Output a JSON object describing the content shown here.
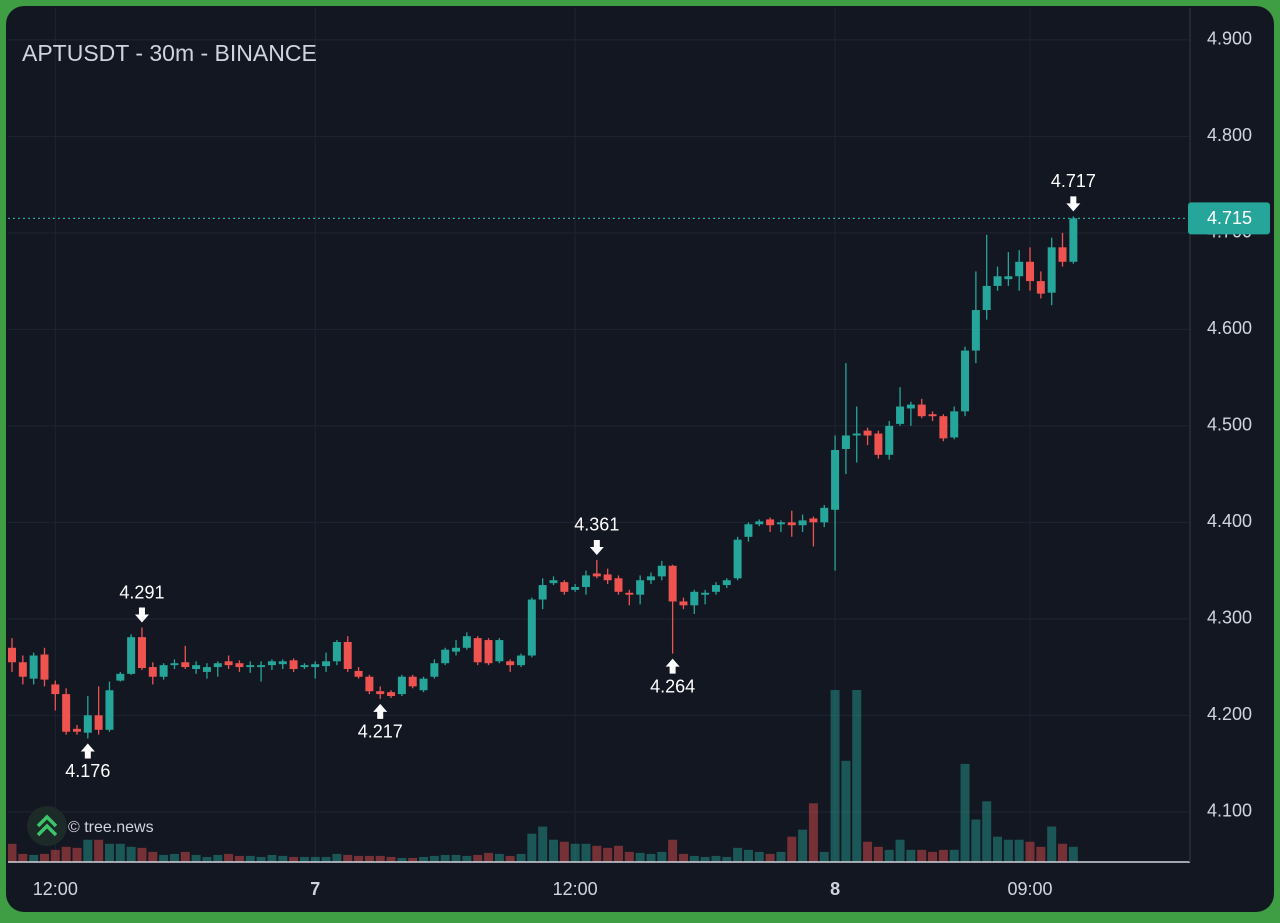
{
  "chart_data": {
    "type": "candlestick",
    "title": "APTUSDT - 30m - BINANCE",
    "watermark": "© tree.news",
    "categories": [
      null,
      null,
      null,
      null,
      "12:00",
      null,
      null,
      null,
      null,
      null,
      null,
      null,
      null,
      null,
      null,
      null,
      null,
      null,
      null,
      null,
      null,
      null,
      null,
      null,
      null,
      null,
      null,
      null,
      "7",
      null,
      null,
      null,
      null,
      null,
      null,
      null,
      null,
      null,
      null,
      null,
      null,
      null,
      null,
      null,
      null,
      null,
      null,
      null,
      null,
      null,
      null,
      null,
      "12:00",
      null,
      null,
      null,
      null,
      null,
      null,
      null,
      null,
      null,
      null,
      null,
      null,
      null,
      null,
      null,
      null,
      null,
      null,
      null,
      null,
      null,
      null,
      null,
      "8",
      null,
      null,
      null,
      null,
      null,
      null,
      null,
      null,
      null,
      null,
      null,
      null,
      null,
      null,
      null,
      null,
      null,
      "09:00",
      null,
      null,
      null,
      null
    ],
    "open": [
      4.27,
      4.255,
      4.238,
      4.263,
      4.232,
      4.222,
      4.186,
      4.182,
      4.2,
      4.185,
      4.236,
      4.243,
      4.281,
      4.25,
      4.24,
      4.252,
      4.255,
      4.248,
      4.245,
      4.25,
      4.256,
      4.254,
      4.25,
      4.25,
      4.252,
      4.253,
      4.257,
      4.25,
      4.25,
      4.251,
      4.256,
      4.276,
      4.246,
      4.24,
      4.225,
      4.224,
      4.222,
      4.24,
      4.226,
      4.24,
      4.254,
      4.266,
      4.27,
      4.28,
      4.278,
      4.256,
      4.256,
      4.252,
      4.262,
      4.32,
      4.337,
      4.338,
      4.33,
      4.333,
      4.347,
      4.346,
      4.342,
      4.327,
      4.325,
      4.34,
      4.344,
      4.355,
      4.318,
      4.314,
      4.325,
      4.328,
      4.335,
      4.342,
      4.385,
      4.398,
      4.403,
      4.398,
      4.4,
      4.397,
      4.404,
      4.4,
      4.413,
      4.476,
      4.49,
      4.495,
      4.492,
      4.47,
      4.502,
      4.518,
      4.522,
      4.512,
      4.51,
      4.488,
      4.515,
      4.578,
      4.62,
      4.645,
      4.652,
      4.655,
      4.67,
      4.65,
      4.638,
      4.685,
      4.67
    ],
    "high": [
      4.28,
      4.262,
      4.265,
      4.27,
      4.236,
      4.228,
      4.19,
      4.22,
      4.23,
      4.235,
      4.245,
      4.284,
      4.291,
      4.255,
      4.254,
      4.258,
      4.272,
      4.256,
      4.254,
      4.256,
      4.262,
      4.257,
      4.256,
      4.256,
      4.258,
      4.258,
      4.259,
      4.254,
      4.256,
      4.265,
      4.278,
      4.282,
      4.25,
      4.242,
      4.23,
      4.226,
      4.242,
      4.242,
      4.24,
      4.258,
      4.27,
      4.278,
      4.286,
      4.282,
      4.28,
      4.28,
      4.258,
      4.264,
      4.322,
      4.342,
      4.344,
      4.34,
      4.336,
      4.35,
      4.361,
      4.352,
      4.345,
      4.33,
      4.345,
      4.348,
      4.36,
      4.356,
      4.322,
      4.33,
      4.33,
      4.338,
      4.342,
      4.385,
      4.4,
      4.403,
      4.405,
      4.402,
      4.412,
      4.408,
      4.406,
      4.418,
      4.49,
      4.565,
      4.52,
      4.498,
      4.495,
      4.505,
      4.54,
      4.525,
      4.528,
      4.515,
      4.512,
      4.52,
      4.582,
      4.66,
      4.698,
      4.665,
      4.68,
      4.682,
      4.685,
      4.66,
      4.695,
      4.7,
      4.717
    ],
    "low": [
      4.245,
      4.232,
      4.232,
      4.23,
      4.205,
      4.18,
      4.18,
      4.176,
      4.18,
      4.183,
      4.235,
      4.242,
      4.247,
      4.232,
      4.237,
      4.248,
      4.248,
      4.243,
      4.238,
      4.24,
      4.248,
      4.245,
      4.244,
      4.235,
      4.247,
      4.248,
      4.245,
      4.248,
      4.238,
      4.245,
      4.252,
      4.245,
      4.238,
      4.222,
      4.217,
      4.218,
      4.22,
      4.228,
      4.224,
      4.238,
      4.252,
      4.262,
      4.268,
      4.252,
      4.252,
      4.254,
      4.245,
      4.25,
      4.26,
      4.31,
      4.335,
      4.325,
      4.328,
      4.325,
      4.342,
      4.336,
      4.325,
      4.314,
      4.315,
      4.336,
      4.34,
      4.264,
      4.31,
      4.305,
      4.315,
      4.325,
      4.332,
      4.34,
      4.38,
      4.396,
      4.39,
      4.39,
      4.385,
      4.39,
      4.375,
      4.395,
      4.35,
      4.45,
      4.462,
      4.48,
      4.466,
      4.465,
      4.5,
      4.5,
      4.508,
      4.505,
      4.484,
      4.486,
      4.51,
      4.565,
      4.61,
      4.64,
      4.645,
      4.64,
      4.64,
      4.632,
      4.625,
      4.665,
      4.668
    ],
    "close": [
      4.255,
      4.24,
      4.262,
      4.237,
      4.222,
      4.183,
      4.183,
      4.2,
      4.185,
      4.226,
      4.243,
      4.281,
      4.249,
      4.24,
      4.252,
      4.254,
      4.25,
      4.252,
      4.25,
      4.254,
      4.252,
      4.25,
      4.252,
      4.252,
      4.256,
      4.256,
      4.248,
      4.252,
      4.253,
      4.256,
      4.276,
      4.248,
      4.24,
      4.225,
      4.222,
      4.22,
      4.24,
      4.23,
      4.238,
      4.254,
      4.268,
      4.27,
      4.282,
      4.255,
      4.254,
      4.278,
      4.252,
      4.262,
      4.32,
      4.335,
      4.34,
      4.328,
      4.333,
      4.345,
      4.344,
      4.34,
      4.328,
      4.325,
      4.34,
      4.344,
      4.355,
      4.318,
      4.314,
      4.328,
      4.327,
      4.335,
      4.34,
      4.382,
      4.398,
      4.401,
      4.397,
      4.4,
      4.397,
      4.402,
      4.4,
      4.415,
      4.475,
      4.49,
      4.492,
      4.49,
      4.47,
      4.5,
      4.52,
      4.522,
      4.51,
      4.51,
      4.487,
      4.515,
      4.578,
      4.62,
      4.645,
      4.655,
      4.655,
      4.67,
      4.65,
      4.637,
      4.685,
      4.67,
      4.715
    ],
    "volume": [
      18,
      8,
      7,
      8,
      12,
      15,
      14,
      22,
      22,
      18,
      18,
      15,
      14,
      10,
      7,
      8,
      10,
      7,
      5,
      7,
      8,
      6,
      6,
      5,
      7,
      6,
      5,
      5,
      5,
      5,
      8,
      7,
      6,
      6,
      6,
      5,
      4,
      4,
      5,
      6,
      7,
      7,
      6,
      7,
      9,
      8,
      6,
      8,
      28,
      35,
      22,
      20,
      18,
      18,
      16,
      14,
      16,
      10,
      9,
      8,
      10,
      22,
      8,
      6,
      5,
      6,
      5,
      14,
      12,
      10,
      8,
      10,
      25,
      32,
      58,
      10,
      170,
      100,
      170,
      20,
      15,
      12,
      22,
      12,
      12,
      10,
      12,
      12,
      97,
      42,
      60,
      25,
      22,
      22,
      20,
      15,
      35,
      18,
      15
    ],
    "up_color": "#26a69a",
    "down_color": "#ef5350",
    "ylim": [
      4.048,
      4.933
    ],
    "yticks": [
      {
        "value": 4.1,
        "label": "4.100"
      },
      {
        "value": 4.2,
        "label": "4.200"
      },
      {
        "value": 4.3,
        "label": "4.300"
      },
      {
        "value": 4.4,
        "label": "4.400"
      },
      {
        "value": 4.5,
        "label": "4.500"
      },
      {
        "value": 4.6,
        "label": "4.600"
      },
      {
        "value": 4.7,
        "label": "4.700"
      },
      {
        "value": 4.8,
        "label": "4.800"
      },
      {
        "value": 4.9,
        "label": "4.900"
      }
    ],
    "grid": true,
    "last_price": 4.715,
    "annotations": [
      {
        "index": 7,
        "value": 4.176,
        "side": "low"
      },
      {
        "index": 12,
        "value": 4.291,
        "side": "high"
      },
      {
        "index": 34,
        "value": 4.217,
        "side": "low"
      },
      {
        "index": 54,
        "value": 4.361,
        "side": "high"
      },
      {
        "index": 61,
        "value": 4.264,
        "side": "low"
      },
      {
        "index": 98,
        "value": 4.717,
        "side": "high"
      }
    ]
  }
}
